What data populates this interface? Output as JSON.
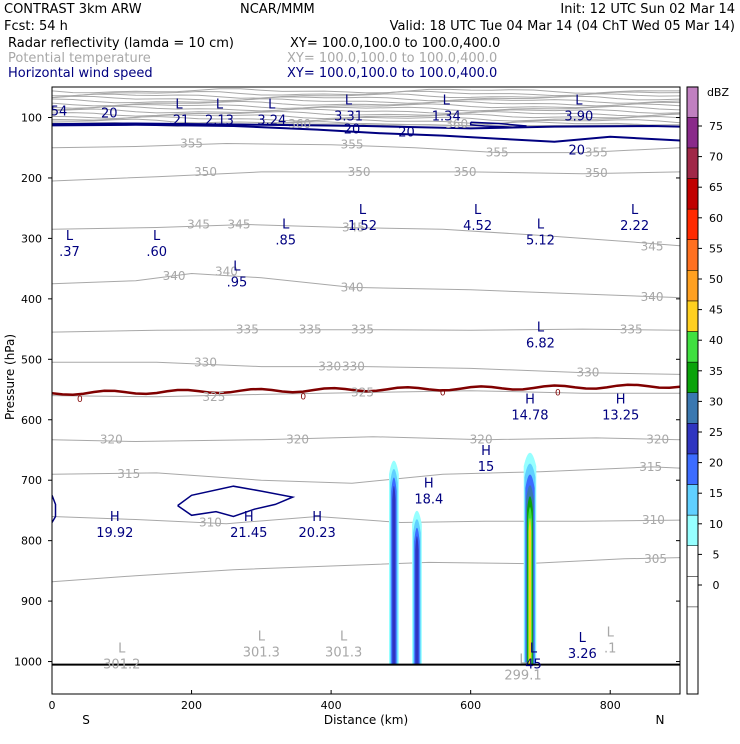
{
  "header": {
    "line1_left": "CONTRAST  3km ARW",
    "line1_center": "NCAR/MMM",
    "line1_right": "Init: 12 UTC Sun 02 Mar 14",
    "line2_left": "Fcst:    54 h",
    "line2_right": "Valid: 18 UTC Tue 04 Mar 14 (04 ChT Wed 05 Mar 14)",
    "fields": [
      {
        "name": "Radar reflectivity (lamda = 10 cm)",
        "xy": "XY= 100.0,100.0 to 100.0,400.0",
        "color": "#000000"
      },
      {
        "name": "Potential temperature",
        "xy": "XY= 100.0,100.0 to 100.0,400.0",
        "color": "#a8a8a8"
      },
      {
        "name": "Horizontal wind speed",
        "xy": "XY= 100.0,100.0 to 100.0,400.0",
        "color": "#000080"
      }
    ]
  },
  "chart_data": {
    "type": "cross-section",
    "xlabel": "Distance (km)",
    "ylabel": "Pressure (hPa)",
    "xlim": [
      0,
      900
    ],
    "ylim": [
      1045,
      50
    ],
    "x_ticks": [
      0,
      200,
      400,
      600,
      800
    ],
    "y_ticks": [
      100,
      200,
      300,
      400,
      500,
      600,
      700,
      800,
      900,
      1000
    ],
    "end_labels": {
      "left": "S",
      "right": "N"
    },
    "colorbar": {
      "title": "dBZ",
      "levels": [
        "0",
        "5",
        "10",
        "15",
        "20",
        "25",
        "30",
        "35",
        "40",
        "45",
        "50",
        "55",
        "60",
        "65",
        "70",
        "75"
      ],
      "colors": [
        "#ffffff",
        "#96ffff",
        "#60d0ff",
        "#3c6cff",
        "#2f35c0",
        "#3a78b0",
        "#0aa30a",
        "#40e040",
        "#ffd020",
        "#ffa020",
        "#ff7020",
        "#ff2a00",
        "#c00000",
        "#a02848",
        "#8a2a8a",
        "#c080c0"
      ]
    },
    "theta_labels": [
      {
        "text": "360",
        "x": 355,
        "p": 111
      },
      {
        "text": "360",
        "x": 580,
        "p": 111
      },
      {
        "text": "355",
        "x": 200,
        "p": 143
      },
      {
        "text": "355",
        "x": 430,
        "p": 145
      },
      {
        "text": "355",
        "x": 638,
        "p": 158
      },
      {
        "text": "355",
        "x": 780,
        "p": 158
      },
      {
        "text": "350",
        "x": 220,
        "p": 190
      },
      {
        "text": "350",
        "x": 440,
        "p": 190
      },
      {
        "text": "350",
        "x": 592,
        "p": 190
      },
      {
        "text": "350",
        "x": 780,
        "p": 192
      },
      {
        "text": "345",
        "x": 210,
        "p": 277
      },
      {
        "text": "345",
        "x": 268,
        "p": 277
      },
      {
        "text": "345",
        "x": 432,
        "p": 282
      },
      {
        "text": "345",
        "x": 860,
        "p": 313
      },
      {
        "text": "340",
        "x": 175,
        "p": 362
      },
      {
        "text": "340",
        "x": 250,
        "p": 355
      },
      {
        "text": "340",
        "x": 430,
        "p": 381
      },
      {
        "text": "340",
        "x": 860,
        "p": 397
      },
      {
        "text": "335",
        "x": 280,
        "p": 451
      },
      {
        "text": "335",
        "x": 370,
        "p": 451
      },
      {
        "text": "335",
        "x": 445,
        "p": 451
      },
      {
        "text": "335",
        "x": 830,
        "p": 451
      },
      {
        "text": "330",
        "x": 220,
        "p": 505
      },
      {
        "text": "330",
        "x": 398,
        "p": 512
      },
      {
        "text": "330",
        "x": 432,
        "p": 512
      },
      {
        "text": "330",
        "x": 768,
        "p": 522
      },
      {
        "text": "325",
        "x": 232,
        "p": 562
      },
      {
        "text": "325",
        "x": 445,
        "p": 555
      },
      {
        "text": "320",
        "x": 85,
        "p": 633
      },
      {
        "text": "320",
        "x": 352,
        "p": 633
      },
      {
        "text": "320",
        "x": 615,
        "p": 633
      },
      {
        "text": "320",
        "x": 868,
        "p": 633
      },
      {
        "text": "315",
        "x": 110,
        "p": 690
      },
      {
        "text": "315",
        "x": 858,
        "p": 678
      },
      {
        "text": "310",
        "x": 227,
        "p": 770
      },
      {
        "text": "310",
        "x": 862,
        "p": 766
      },
      {
        "text": "305",
        "x": 865,
        "p": 830
      }
    ],
    "wind_labels": [
      {
        "text": "54",
        "x": 10,
        "p": 90
      },
      {
        "text": "20",
        "x": 82,
        "p": 93
      },
      {
        "text": "20",
        "x": 430,
        "p": 120
      },
      {
        "text": "20",
        "x": 508,
        "p": 125
      },
      {
        "text": "20",
        "x": 752,
        "p": 155
      },
      {
        "text": "0",
        "x": 40,
        "p": 564
      },
      {
        "text": "0",
        "x": 360,
        "p": 560
      },
      {
        "text": "0",
        "x": 560,
        "p": 553
      },
      {
        "text": "0",
        "x": 725,
        "p": 553
      }
    ],
    "extrema": [
      {
        "kind": "L",
        "value": ".21",
        "x": 182,
        "p": 92,
        "color": "#000080"
      },
      {
        "kind": "L",
        "value": "2.13",
        "x": 240,
        "p": 92,
        "color": "#000080"
      },
      {
        "kind": "L",
        "value": "3.24",
        "x": 315,
        "p": 92,
        "color": "#000080"
      },
      {
        "kind": "L",
        "value": "3.31",
        "x": 425,
        "p": 85,
        "color": "#000080"
      },
      {
        "kind": "L",
        "value": "1.34",
        "x": 565,
        "p": 85,
        "color": "#000080"
      },
      {
        "kind": "L",
        "value": "3.90",
        "x": 755,
        "p": 85,
        "color": "#000080"
      },
      {
        "kind": "L",
        "value": ".37",
        "x": 25,
        "p": 309,
        "color": "#000080"
      },
      {
        "kind": "L",
        "value": ".60",
        "x": 150,
        "p": 309,
        "color": "#000080"
      },
      {
        "kind": "L",
        "value": ".85",
        "x": 335,
        "p": 290,
        "color": "#000080"
      },
      {
        "kind": "L",
        "value": ".95",
        "x": 265,
        "p": 360,
        "color": "#000080"
      },
      {
        "kind": "L",
        "value": "1.52",
        "x": 445,
        "p": 266,
        "color": "#000080"
      },
      {
        "kind": "L",
        "value": "4.52",
        "x": 610,
        "p": 266,
        "color": "#000080"
      },
      {
        "kind": "L",
        "value": "5.12",
        "x": 700,
        "p": 290,
        "color": "#000080"
      },
      {
        "kind": "L",
        "value": "2.22",
        "x": 835,
        "p": 266,
        "color": "#000080"
      },
      {
        "kind": "L",
        "value": "6.82",
        "x": 700,
        "p": 461,
        "color": "#000080"
      },
      {
        "kind": "H",
        "value": "14.78",
        "x": 685,
        "p": 580,
        "color": "#000080"
      },
      {
        "kind": "H",
        "value": "13.25",
        "x": 815,
        "p": 580,
        "color": "#000080"
      },
      {
        "kind": "H",
        "value": "15",
        "x": 622,
        "p": 665,
        "color": "#000080"
      },
      {
        "kind": "H",
        "value": "18.4",
        "x": 540,
        "p": 719,
        "color": "#000080"
      },
      {
        "kind": "H",
        "value": "19.92",
        "x": 90,
        "p": 774,
        "color": "#000080"
      },
      {
        "kind": "H",
        "value": "21.45",
        "x": 282,
        "p": 774,
        "color": "#000080"
      },
      {
        "kind": "H",
        "value": "20.23",
        "x": 380,
        "p": 774,
        "color": "#000080"
      },
      {
        "kind": "L",
        "value": "3.26",
        "x": 760,
        "p": 974,
        "color": "#000080"
      },
      {
        "kind": "L",
        "value": "301.2",
        "x": 100,
        "p": 992,
        "color": "#a8a8a8"
      },
      {
        "kind": "L",
        "value": "301.3",
        "x": 300,
        "p": 972,
        "color": "#a8a8a8"
      },
      {
        "kind": "L",
        "value": "301.3",
        "x": 418,
        "p": 972,
        "color": "#a8a8a8"
      },
      {
        "kind": "L",
        "value": ".1",
        "x": 800,
        "p": 965,
        "color": "#a8a8a8"
      },
      {
        "kind": "L",
        "value": "299.1",
        "x": 675,
        "p": 1010,
        "color": "#a8a8a8"
      },
      {
        "kind": "L",
        "value": "45",
        "x": 690,
        "p": 992,
        "color": "#000080"
      }
    ]
  }
}
